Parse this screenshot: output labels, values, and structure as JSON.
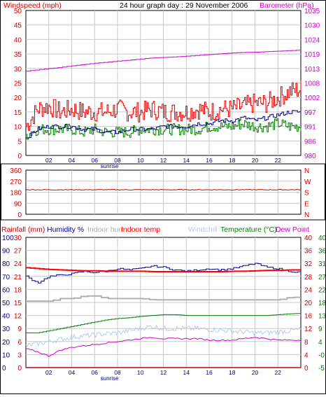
{
  "header": {
    "windspeed_label": "Windspeed (mph)",
    "title": "24 hour graph day : 29 November 2006",
    "barometer_label": "Barometer (hPa)"
  },
  "legend2": {
    "rainfall": "Rainfall (mm)",
    "humidity": "Humidity %",
    "indoor_hum": "Indoor hum",
    "indoor_temp": "Indoor temp",
    "windchill": "Windchill",
    "temperature": "Temperature (°C)",
    "dew_point": "Dew Point"
  },
  "colors": {
    "wind_gust": "#e00000",
    "wind_avg": "#008000",
    "wind_avg2": "#000080",
    "barometer": "#cc00cc",
    "direction": "#cc0000",
    "humidity": "#000099",
    "indoor_hum": "#b0b0b0",
    "indoor_temp": "#ff0000",
    "windchill": "#b8c8f0",
    "temperature": "#008000",
    "dew_point": "#cc00cc",
    "rainfall": "#cc0000"
  },
  "chart_data": [
    {
      "type": "line",
      "x_ticks": [
        "02",
        "04",
        "06",
        "08",
        "10",
        "12",
        "14",
        "16",
        "18",
        "20",
        "22"
      ],
      "x_note": "sunrise",
      "y_left_ticks": [
        "50",
        "45",
        "40",
        "35",
        "30",
        "25",
        "20",
        "15",
        "10",
        "5",
        "0"
      ],
      "y_left_range": [
        0,
        50
      ],
      "y_right_ticks": [
        "1035",
        "1030",
        "1024",
        "1019",
        "1013",
        "1008",
        "1002",
        "997",
        "991",
        "986",
        "980"
      ],
      "y_right_range": [
        980,
        1035
      ],
      "grid": true,
      "series": [
        {
          "name": "Windspeed (mph)",
          "role": "gust",
          "x": [
            0,
            1,
            2,
            3,
            4,
            5,
            6,
            7,
            8,
            9,
            10,
            11,
            12,
            13,
            14,
            15,
            16,
            17,
            18,
            19,
            20,
            21,
            22,
            23,
            24
          ],
          "y": [
            10,
            16,
            17,
            15,
            16,
            15,
            15,
            15,
            16,
            15,
            15,
            16,
            15,
            15,
            15,
            16,
            15,
            16,
            16,
            17,
            18,
            18,
            20,
            22,
            23
          ]
        },
        {
          "name": "",
          "role": "avg",
          "x": [
            0,
            1,
            2,
            3,
            4,
            5,
            6,
            7,
            8,
            9,
            10,
            11,
            12,
            13,
            14,
            15,
            16,
            17,
            18,
            19,
            20,
            21,
            22,
            23,
            24
          ],
          "y": [
            7,
            9,
            9,
            9,
            9,
            8,
            9,
            8,
            8,
            8,
            9,
            9,
            9,
            9,
            9,
            9,
            10,
            10,
            10,
            11,
            10,
            10,
            11,
            10,
            10
          ]
        },
        {
          "name": "",
          "role": "avg2",
          "x": [
            0,
            1,
            2,
            3,
            4,
            5,
            6,
            7,
            8,
            9,
            10,
            11,
            12,
            13,
            14,
            15,
            16,
            17,
            18,
            19,
            20,
            21,
            22,
            23,
            24
          ],
          "y": [
            6,
            9,
            10,
            10,
            10,
            9,
            9,
            8,
            8,
            9,
            9,
            9,
            10,
            10,
            10,
            11,
            11,
            12,
            12,
            13,
            12,
            13,
            14,
            15,
            15
          ]
        },
        {
          "name": "Barometer (hPa)",
          "role": "barometer",
          "x": [
            0,
            1,
            2,
            3,
            4,
            5,
            6,
            7,
            8,
            9,
            10,
            11,
            12,
            13,
            14,
            15,
            16,
            17,
            18,
            19,
            20,
            21,
            22,
            23,
            24
          ],
          "y": [
            1012,
            1012.5,
            1013,
            1013.4,
            1014,
            1014.5,
            1015,
            1015.4,
            1015.8,
            1016.2,
            1016.6,
            1017,
            1017.2,
            1017.4,
            1017.7,
            1018,
            1018.3,
            1018.6,
            1018.9,
            1019.1,
            1019.2,
            1019.4,
            1019.6,
            1019.8,
            1020
          ]
        }
      ]
    },
    {
      "type": "line",
      "x_ticks": [
        "02",
        "04",
        "06",
        "08",
        "10",
        "12",
        "14",
        "16",
        "18",
        "20",
        "22"
      ],
      "y_left_ticks": [
        "360",
        "270",
        "180",
        "90",
        "0"
      ],
      "y_left_range": [
        0,
        360
      ],
      "y_right_ticks": [
        "N",
        "W",
        "S",
        "E",
        "N"
      ],
      "grid": true,
      "series": [
        {
          "name": "",
          "role": "direction",
          "x": [
            0,
            2,
            4,
            6,
            8,
            10,
            12,
            14,
            16,
            18,
            20,
            22,
            24
          ],
          "y": [
            200,
            200,
            200,
            200,
            200,
            200,
            200,
            200,
            200,
            200,
            200,
            200,
            200
          ]
        }
      ]
    },
    {
      "type": "line",
      "x_ticks": [
        "02",
        "04",
        "06",
        "08",
        "10",
        "12",
        "14",
        "16",
        "18",
        "20",
        "22"
      ],
      "x_note": "sunrise",
      "y_left_ticks": [
        "30",
        "27",
        "24",
        "21",
        "18",
        "15",
        "12",
        "9",
        "6",
        "3",
        "0"
      ],
      "y_left_range": [
        0,
        30
      ],
      "y_humidity_ticks": [
        "100",
        "90",
        "80",
        "70",
        "60",
        "50",
        "40",
        "30",
        "20",
        "10",
        "0"
      ],
      "y_humidity_range": [
        0,
        100
      ],
      "y_right_ticks": [
        "40",
        "36",
        "32",
        "28",
        "24",
        "20",
        "16",
        "12",
        "8",
        "4",
        "0"
      ],
      "y_right_range": [
        0,
        40
      ],
      "y_right2_ticks": [
        "40",
        "36",
        "31",
        "27",
        "22",
        "18",
        "13",
        "9",
        "4",
        "-0",
        "-5"
      ],
      "y_right2_range": [
        -5,
        40
      ],
      "grid": true,
      "series": [
        {
          "name": "Humidity %",
          "role": "humidity",
          "x": [
            0,
            1,
            2,
            3,
            4,
            5,
            6,
            7,
            8,
            9,
            10,
            11,
            12,
            13,
            14,
            15,
            16,
            17,
            18,
            19,
            20,
            21,
            22,
            23,
            24
          ],
          "y": [
            70,
            65,
            70,
            71,
            72,
            74,
            73,
            74,
            76,
            75,
            76,
            78,
            77,
            75,
            74,
            75,
            76,
            75,
            76,
            78,
            80,
            77,
            76,
            74,
            73
          ]
        },
        {
          "name": "Indoor hum",
          "role": "indoor_hum",
          "x": [
            0,
            1,
            2,
            3,
            4,
            5,
            6,
            7,
            8,
            9,
            10,
            11,
            12,
            13,
            14,
            15,
            16,
            17,
            18,
            19,
            20,
            21,
            22,
            23,
            24
          ],
          "y": [
            51,
            51,
            51,
            53,
            53,
            55,
            55,
            53,
            53,
            53,
            53,
            52,
            52,
            52,
            52,
            52,
            52,
            52,
            52,
            52,
            52,
            52,
            52,
            54,
            54
          ]
        },
        {
          "name": "Indoor temp",
          "role": "indoor_temp",
          "x": [
            0,
            1,
            2,
            3,
            4,
            5,
            6,
            7,
            8,
            9,
            10,
            11,
            12,
            13,
            14,
            15,
            16,
            17,
            18,
            19,
            20,
            21,
            22,
            23,
            24
          ],
          "y": [
            23,
            22.8,
            22.6,
            22.5,
            22.4,
            22.3,
            22.3,
            22.2,
            22.2,
            22.2,
            22.2,
            22.1,
            22.1,
            22.1,
            22.1,
            22.1,
            22.1,
            22.1,
            22.2,
            22.2,
            22.3,
            22.4,
            22.4,
            22.5,
            22.5
          ]
        },
        {
          "name": "Windchill",
          "role": "windchill",
          "x": [
            0,
            1,
            2,
            3,
            4,
            5,
            6,
            7,
            8,
            9,
            10,
            11,
            12,
            13,
            14,
            15,
            16,
            17,
            18,
            19,
            20,
            21,
            22,
            23,
            24
          ],
          "y": [
            5,
            5.5,
            6,
            6.5,
            7,
            7.3,
            7.5,
            7.8,
            8,
            8.5,
            9,
            9.5,
            9,
            9,
            9,
            9,
            8.8,
            8.6,
            8.4,
            8.2,
            8,
            8,
            8.2,
            8.5,
            8.8
          ]
        },
        {
          "name": "Temperature (°C)",
          "role": "temperature",
          "x": [
            0,
            1,
            2,
            3,
            4,
            5,
            6,
            7,
            8,
            9,
            10,
            11,
            12,
            13,
            14,
            15,
            16,
            17,
            18,
            19,
            20,
            21,
            22,
            23,
            24
          ],
          "y": [
            8,
            8,
            8.5,
            9,
            9.5,
            10,
            10.5,
            11,
            11.3,
            11.5,
            11.8,
            12,
            12.2,
            12.2,
            12,
            12,
            12,
            12,
            12,
            12,
            12,
            12,
            12.2,
            12.4,
            12.5
          ]
        },
        {
          "name": "Dew Point",
          "role": "dew_point",
          "x": [
            0,
            1,
            2,
            3,
            4,
            5,
            6,
            7,
            8,
            9,
            10,
            11,
            12,
            13,
            14,
            15,
            16,
            17,
            18,
            19,
            20,
            21,
            22,
            23,
            24
          ],
          "y": [
            1.5,
            0.5,
            -1,
            1,
            2,
            2.5,
            3,
            3.5,
            4,
            4.5,
            5,
            5.5,
            5,
            5,
            5,
            5,
            4.5,
            4.5,
            4.5,
            5,
            5.5,
            5,
            4.5,
            4.5,
            4.5
          ]
        },
        {
          "name": "Rainfall (mm)",
          "role": "rainfall",
          "x": [
            0,
            24
          ],
          "y": [
            0,
            0
          ]
        }
      ]
    }
  ]
}
